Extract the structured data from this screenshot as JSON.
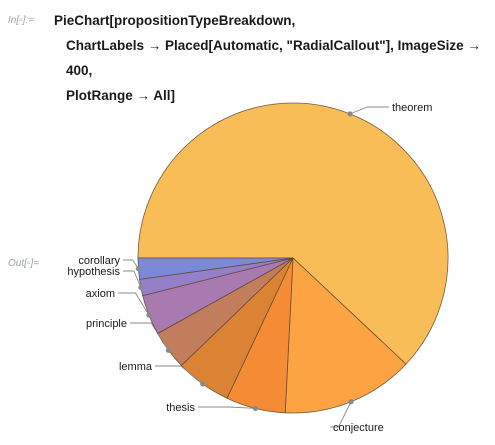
{
  "notebook": {
    "in_label": "In[▫]:=",
    "out_label": "Out[▫]=",
    "code_lines": [
      "PieChart[propositionTypeBreakdown,",
      "ChartLabels → Placed[Automatic, \"RadialCallout\"], ImageSize → 400,",
      "PlotRange → All]"
    ]
  },
  "chart_data": {
    "type": "pie",
    "title": "",
    "start": "9 o'clock, clockwise",
    "slices": [
      {
        "label": "theorem",
        "value": 62.0,
        "color": "#f9bd58"
      },
      {
        "label": "conjecture",
        "value": 13.8,
        "color": "#fca444"
      },
      {
        "label": "thesis",
        "value": 6.2,
        "color": "#f58b35"
      },
      {
        "label": "lemma",
        "value": 5.8,
        "color": "#db8235"
      },
      {
        "label": "principle",
        "value": 4.1,
        "color": "#c27d5c"
      },
      {
        "label": "axiom",
        "value": 4.2,
        "color": "#a87ab0"
      },
      {
        "label": "hypothesis",
        "value": 1.7,
        "color": "#9580c8"
      },
      {
        "label": "corollary",
        "value": 2.2,
        "color": "#7c88d8"
      }
    ]
  }
}
